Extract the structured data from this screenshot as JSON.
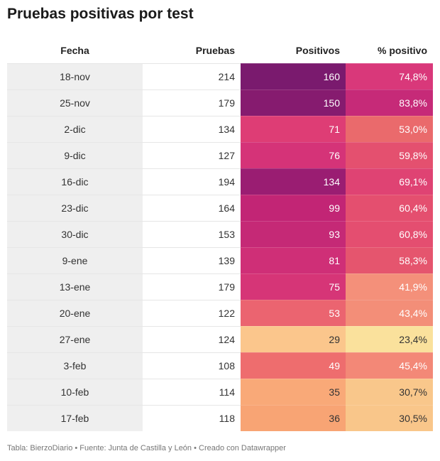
{
  "title": "Pruebas positivas por test",
  "footer": "Tabla: BierzoDiario • Fuente: Junta de Castilla y León • Creado con Datawrapper",
  "chart_data": {
    "type": "table",
    "title": "Pruebas positivas por test",
    "columns": [
      "Fecha",
      "Pruebas",
      "Positivos",
      "% positivo"
    ],
    "rows": [
      {
        "fecha": "18-nov",
        "pruebas": "214",
        "positivos": "160",
        "pct": "74,8%",
        "pos_color": "#7a1a6e",
        "pct_color": "#d9387a"
      },
      {
        "fecha": "25-nov",
        "pruebas": "179",
        "positivos": "150",
        "pct": "83,8%",
        "pos_color": "#861b6f",
        "pct_color": "#c62a78"
      },
      {
        "fecha": "2-dic",
        "pruebas": "134",
        "positivos": "71",
        "pct": "53,0%",
        "pos_color": "#de3d75",
        "pct_color": "#ea6a6c"
      },
      {
        "fecha": "9-dic",
        "pruebas": "127",
        "positivos": "76",
        "pct": "59,8%",
        "pos_color": "#d53378",
        "pct_color": "#e4506f"
      },
      {
        "fecha": "16-dic",
        "pruebas": "194",
        "positivos": "134",
        "pct": "69,1%",
        "pos_color": "#9a1d72",
        "pct_color": "#df4373"
      },
      {
        "fecha": "23-dic",
        "pruebas": "164",
        "positivos": "99",
        "pct": "60,4%",
        "pos_color": "#c22575",
        "pct_color": "#e44f6f"
      },
      {
        "fecha": "30-dic",
        "pruebas": "153",
        "positivos": "93",
        "pct": "60,8%",
        "pos_color": "#c52976",
        "pct_color": "#e44e70"
      },
      {
        "fecha": "9-ene",
        "pruebas": "139",
        "positivos": "81",
        "pct": "58,3%",
        "pos_color": "#cf2f77",
        "pct_color": "#e5556e"
      },
      {
        "fecha": "13-ene",
        "pruebas": "179",
        "positivos": "75",
        "pct": "41,9%",
        "pos_color": "#d63577",
        "pct_color": "#f4907a"
      },
      {
        "fecha": "20-ene",
        "pruebas": "122",
        "positivos": "53",
        "pct": "43,4%",
        "pos_color": "#eb6470",
        "pct_color": "#f38e78"
      },
      {
        "fecha": "27-ene",
        "pruebas": "124",
        "positivos": "29",
        "pct": "23,4%",
        "pos_color": "#fbc68c",
        "pct_color": "#fae19c"
      },
      {
        "fecha": "3-feb",
        "pruebas": "108",
        "positivos": "49",
        "pct": "45,4%",
        "pos_color": "#ee6d6e",
        "pct_color": "#f38877"
      },
      {
        "fecha": "10-feb",
        "pruebas": "114",
        "positivos": "35",
        "pct": "30,7%",
        "pos_color": "#f9a978",
        "pct_color": "#f9c78b"
      },
      {
        "fecha": "17-feb",
        "pruebas": "118",
        "positivos": "36",
        "pct": "30,5%",
        "pos_color": "#f8a474",
        "pct_color": "#f9c68a"
      }
    ]
  }
}
